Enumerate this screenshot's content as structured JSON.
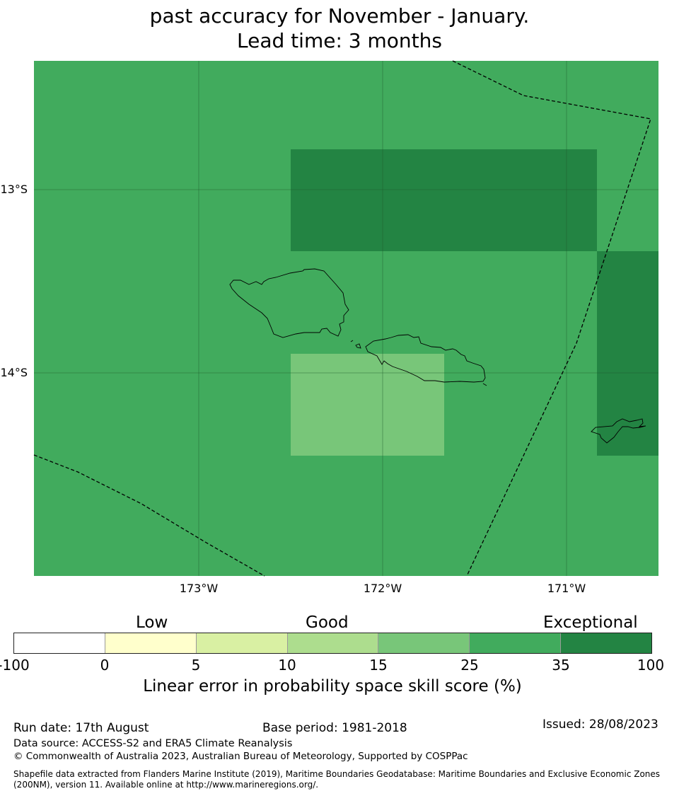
{
  "title": {
    "line1": "past accuracy for November - January.",
    "line2": "Lead time: 3 months"
  },
  "map": {
    "lon_ticks": [
      "173°W",
      "172°W",
      "171°W"
    ],
    "lat_ticks": [
      "13°S",
      "14°S"
    ],
    "colors": {
      "background": "#41ab5d",
      "exceptional": "#238443",
      "good": "#78c679"
    }
  },
  "legend": {
    "categories": [
      "Low",
      "Good",
      "Exceptional"
    ],
    "ticks": [
      "-100",
      "0",
      "5",
      "10",
      "15",
      "25",
      "35",
      "100"
    ],
    "colors": [
      "#ffffff",
      "#ffffcc",
      "#d9f0a3",
      "#addd8e",
      "#78c679",
      "#41ab5d",
      "#238443"
    ],
    "label": "Linear error in probability space skill score (%)"
  },
  "footer": {
    "run_date": "Run date: 17th August",
    "base_period": "Base period: 1981-2018",
    "issued": "Issued: 28/08/2023",
    "data_source": "Data source: ACCESS-S2 and ERA5 Climate Reanalysis",
    "copyright": "© Commonwealth of Australia 2023, Australian Bureau of Meteorology, Supported by COSPPac",
    "shapefile": "Shapefile data extracted from Flanders Marine Institute (2019), Maritime Boundaries Geodatabase: Maritime Boundaries and Exclusive Economic Zones (200NM), version 11. Available online at http://www.marineregions.org/."
  }
}
